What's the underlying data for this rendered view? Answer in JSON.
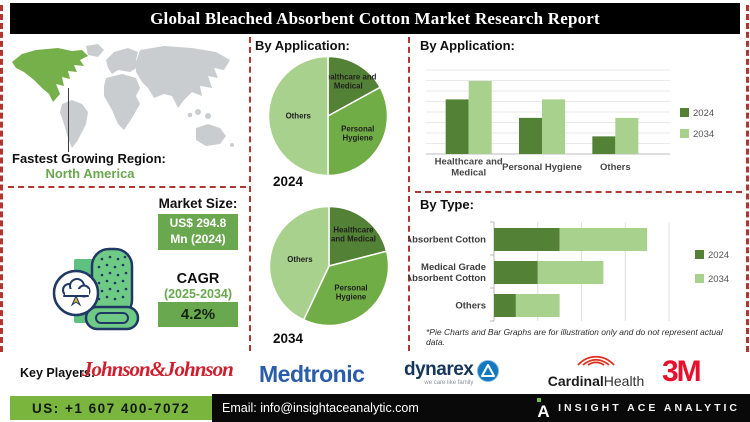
{
  "header": {
    "title": "Global Bleached Absorbent Cotton Market Research Report"
  },
  "left_panel": {
    "region_label": "Fastest Growing Region:",
    "region_value": "North America",
    "market_size_label": "Market Size:",
    "market_size_line1": "US$ 294.8",
    "market_size_line2": "Mn (2024)",
    "cagr_label": "CAGR",
    "cagr_period": "(2025-2034)",
    "cagr_value": "4.2%"
  },
  "footnote": "*Pie Charts and Bar Graphs are for illustration only and do not represent actual data.",
  "key_players": {
    "label": "Key Players:",
    "johnson": "Johnson&Johnson",
    "medtronic": "Medtronic",
    "dynarex": "dynarex",
    "dynarex_tagline": "we care like family",
    "cardinal_part1": "Cardinal",
    "cardinal_part2": "Health",
    "three_m": "3M"
  },
  "footer": {
    "phone": "US: +1 607 400-7072",
    "email": "Email: info@insightaceanalytic.com",
    "brand": "INSIGHT ACE ANALYTIC",
    "brand_glyph": "A"
  },
  "colors": {
    "divider_red": "#b23530",
    "green_dark": "#538135",
    "green_mid": "#70ad47",
    "green_light": "#a9d18e",
    "accent_green": "#6aa84f",
    "footer_green": "#7ab53e",
    "map_highlight": "#76b04a",
    "map_base": "#c9cdd0"
  },
  "chart_data": [
    {
      "id": "pie_applications_2024",
      "type": "pie",
      "title": "By Application:",
      "year_label": "2024",
      "slices": [
        {
          "label": "Healthcare and Medical",
          "label_lines": [
            "Healthcare and",
            "Medical"
          ],
          "value": 17,
          "color": "#538135"
        },
        {
          "label": "Personal Hygiene",
          "label_lines": [
            "Personal",
            "Hygiene"
          ],
          "value": 33,
          "color": "#70ad47"
        },
        {
          "label": "Others",
          "label_lines": [
            "Others"
          ],
          "value": 50,
          "color": "#a9d18e"
        }
      ]
    },
    {
      "id": "pie_applications_2034",
      "type": "pie",
      "title": "By Application:",
      "year_label": "2034",
      "slices": [
        {
          "label": "Healthcare and Medical",
          "label_lines": [
            "Healthcare",
            "and Medical"
          ],
          "value": 21,
          "color": "#538135"
        },
        {
          "label": "Personal Hygiene",
          "label_lines": [
            "Personal",
            "Hygiene"
          ],
          "value": 36,
          "color": "#70ad47"
        },
        {
          "label": "Others",
          "label_lines": [
            "Others"
          ],
          "value": 43,
          "color": "#a9d18e"
        }
      ]
    },
    {
      "id": "bar_applications",
      "type": "bar",
      "title": "By Application:",
      "categories": [
        "Healthcare and Medical",
        "Personal Hygiene",
        "Others"
      ],
      "category_lines": [
        [
          "Healthcare and",
          "Medical"
        ],
        [
          "Personal Hygiene"
        ],
        [
          "Others"
        ]
      ],
      "series": [
        {
          "name": "2024",
          "color": "#538135",
          "values": [
            65,
            43,
            21
          ]
        },
        {
          "name": "2034",
          "color": "#a9d18e",
          "values": [
            87,
            65,
            43
          ]
        }
      ],
      "ylim": [
        0,
        100
      ],
      "grid": true,
      "legend_position": "right"
    },
    {
      "id": "bar_type",
      "type": "stacked_bar_horizontal",
      "title": "By Type:",
      "categories": [
        "Absorbent Cotton",
        "Medical Grade Absorbent Cotton",
        "Others"
      ],
      "category_lines": [
        [
          "Absorbent Cotton"
        ],
        [
          "Medical Grade",
          "Absorbent Cotton"
        ],
        [
          "Others"
        ]
      ],
      "series": [
        {
          "name": "2024",
          "color": "#538135",
          "values": [
            30,
            20,
            10
          ]
        },
        {
          "name": "2034",
          "color": "#a9d18e",
          "values": [
            40,
            30,
            20
          ]
        }
      ],
      "xlim": [
        0,
        80
      ],
      "grid": true,
      "legend_position": "right"
    }
  ]
}
